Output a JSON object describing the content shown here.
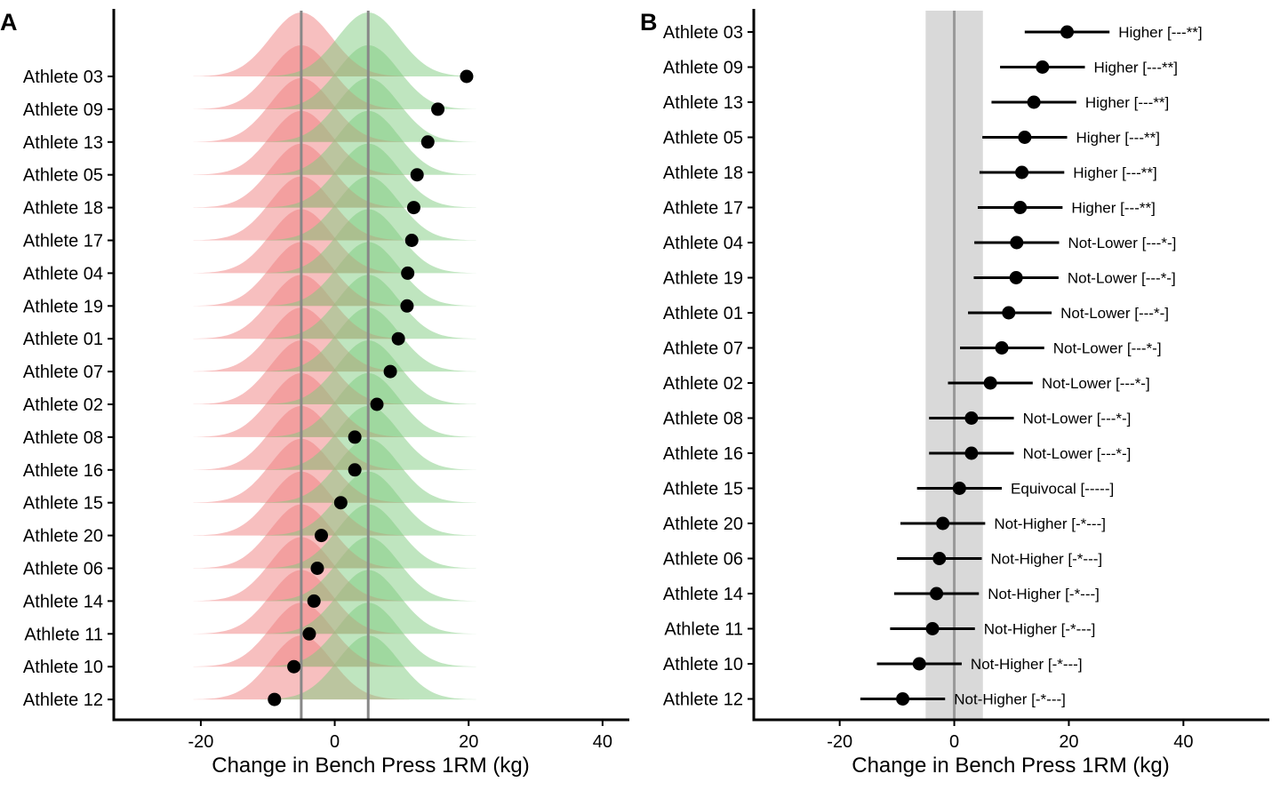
{
  "chart_data": [
    {
      "type": "ridgeline",
      "panel_label": "A",
      "xlabel": "Change in Bench Press 1RM (kg)",
      "ylabel": "",
      "xlim": [
        -33,
        44
      ],
      "xticks": [
        -20,
        0,
        20,
        40
      ],
      "xtick_labels": [
        "-20",
        "0",
        "20",
        "40"
      ],
      "reference_lines": [
        -5,
        5
      ],
      "distributions": [
        {
          "center": -5,
          "color": "#f08080"
        },
        {
          "center": 5,
          "color": "#7fcc7f"
        }
      ],
      "categories": [
        "Athlete 03",
        "Athlete 09",
        "Athlete 13",
        "Athlete 05",
        "Athlete 18",
        "Athlete 17",
        "Athlete 04",
        "Athlete 19",
        "Athlete 01",
        "Athlete 07",
        "Athlete 02",
        "Athlete 08",
        "Athlete 16",
        "Athlete 15",
        "Athlete 20",
        "Athlete 06",
        "Athlete 14",
        "Athlete 11",
        "Athlete 10",
        "Athlete 12"
      ],
      "values": [
        19.7,
        15.4,
        13.9,
        12.3,
        11.8,
        11.5,
        10.9,
        10.8,
        9.5,
        8.3,
        6.3,
        3.0,
        3.0,
        0.9,
        -2.0,
        -2.6,
        -3.1,
        -3.8,
        -6.1,
        -9.0
      ]
    },
    {
      "type": "dot-errorbar",
      "panel_label": "B",
      "xlabel": "Change in Bench Press 1RM (kg)",
      "ylabel": "",
      "xlim": [
        -35,
        55
      ],
      "xticks": [
        -20,
        0,
        20,
        40
      ],
      "xtick_labels": [
        "-20",
        "0",
        "20",
        "40"
      ],
      "reference_line": 0,
      "band": [
        -5,
        5
      ],
      "categories": [
        "Athlete 03",
        "Athlete 09",
        "Athlete 13",
        "Athlete 05",
        "Athlete 18",
        "Athlete 17",
        "Athlete 04",
        "Athlete 19",
        "Athlete 01",
        "Athlete 07",
        "Athlete 02",
        "Athlete 08",
        "Athlete 16",
        "Athlete 15",
        "Athlete 20",
        "Athlete 06",
        "Athlete 14",
        "Athlete 11",
        "Athlete 10",
        "Athlete 12"
      ],
      "values": [
        19.7,
        15.4,
        13.9,
        12.3,
        11.8,
        11.5,
        10.9,
        10.8,
        9.5,
        8.3,
        6.3,
        3.0,
        3.0,
        0.9,
        -2.0,
        -2.6,
        -3.1,
        -3.8,
        -6.1,
        -9.0
      ],
      "lower": [
        12.3,
        8.0,
        6.5,
        4.9,
        4.4,
        4.1,
        3.5,
        3.4,
        2.4,
        1.0,
        -1.1,
        -4.4,
        -4.4,
        -6.5,
        -9.4,
        -10.0,
        -10.5,
        -11.2,
        -13.5,
        -16.4
      ],
      "upper": [
        27.1,
        22.8,
        21.3,
        19.7,
        19.2,
        18.9,
        18.3,
        18.2,
        17.0,
        15.7,
        13.7,
        10.4,
        10.4,
        8.3,
        5.4,
        4.8,
        4.3,
        3.6,
        1.3,
        -1.6
      ],
      "annotations": [
        "Higher [---**]",
        "Higher [---**]",
        "Higher [---**]",
        "Higher [---**]",
        "Higher [---**]",
        "Higher [---**]",
        "Not-Lower [---*-]",
        "Not-Lower [---*-]",
        "Not-Lower [---*-]",
        "Not-Lower [---*-]",
        "Not-Lower [---*-]",
        "Not-Lower [---*-]",
        "Not-Lower [---*-]",
        "Equivocal [-----]",
        "Not-Higher [-*---]",
        "Not-Higher [-*---]",
        "Not-Higher [-*---]",
        "Not-Higher [-*---]",
        "Not-Higher [-*---]",
        "Not-Higher [-*---]"
      ]
    }
  ]
}
